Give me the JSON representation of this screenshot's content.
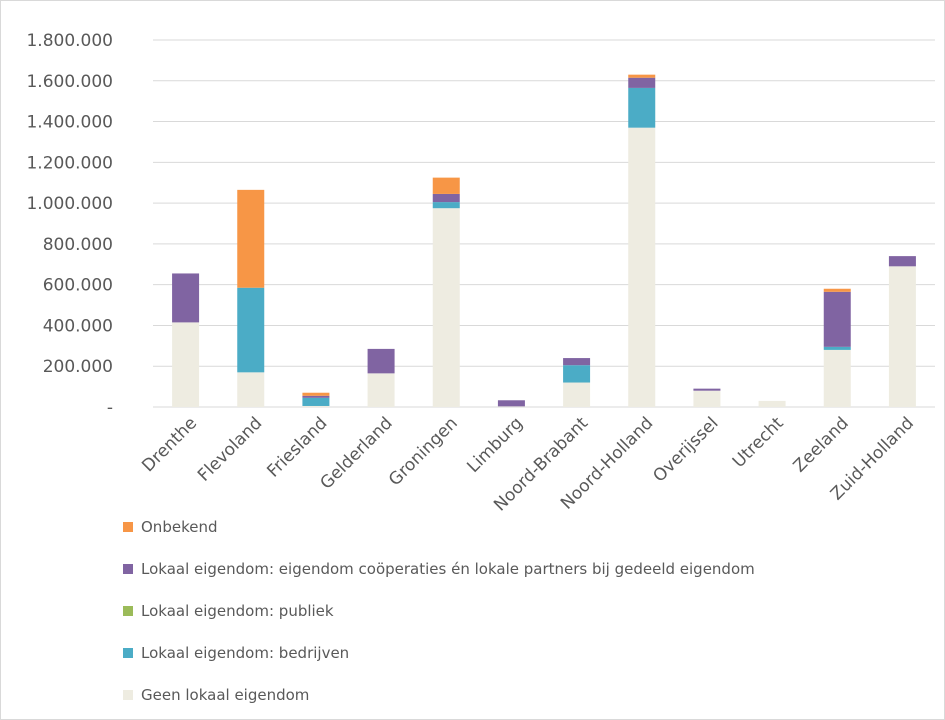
{
  "title": "",
  "chart_data": {
    "type": "bar",
    "stacked": true,
    "categories": [
      "Drenthe",
      "Flevoland",
      "Friesland",
      "Gelderland",
      "Groningen",
      "Limburg",
      "Noord-Brabant",
      "Noord-Holland",
      "Overijssel",
      "Utrecht",
      "Zeeland",
      "Zuid-Holland"
    ],
    "series": [
      {
        "name": "Geen lokaal eigendom",
        "color": "#eeece1",
        "values": [
          415000,
          170000,
          5000,
          165000,
          975000,
          3000,
          120000,
          1370000,
          80000,
          30000,
          280000,
          690000
        ]
      },
      {
        "name": "Lokaal eigendom: bedrijven",
        "color": "#4bacc6",
        "values": [
          0,
          415000,
          40000,
          0,
          30000,
          0,
          85000,
          195000,
          0,
          0,
          15000,
          0
        ]
      },
      {
        "name": "Lokaal eigendom: publiek",
        "color": "#9bbb59",
        "values": [
          0,
          0,
          0,
          0,
          0,
          0,
          0,
          0,
          0,
          0,
          0,
          0
        ]
      },
      {
        "name": "Lokaal eigendom: eigendom coöperaties én lokale partners bij gedeeld eigendom",
        "color": "#8064a2",
        "values": [
          240000,
          0,
          10000,
          120000,
          40000,
          30000,
          35000,
          50000,
          10000,
          0,
          270000,
          50000
        ]
      },
      {
        "name": "Onbekend",
        "color": "#f79646",
        "values": [
          0,
          480000,
          15000,
          0,
          80000,
          0,
          0,
          15000,
          0,
          0,
          15000,
          0
        ]
      }
    ],
    "ylim": [
      0,
      1800000
    ],
    "yticks": [
      0,
      200000,
      400000,
      600000,
      800000,
      1000000,
      1200000,
      1400000,
      1600000,
      1800000
    ],
    "ytick_labels": [
      "-",
      "200.000",
      "400.000",
      "600.000",
      "800.000",
      "1.000.000",
      "1.200.000",
      "1.400.000",
      "1.600.000",
      "1.800.000"
    ],
    "grid": true,
    "legend_position": "bottom",
    "legend_order": [
      "Onbekend",
      "Lokaal eigendom: eigendom coöperaties én lokale partners bij gedeeld eigendom",
      "Lokaal eigendom: publiek",
      "Lokaal eigendom: bedrijven",
      "Geen lokaal eigendom"
    ],
    "xlabel": "",
    "ylabel": ""
  }
}
